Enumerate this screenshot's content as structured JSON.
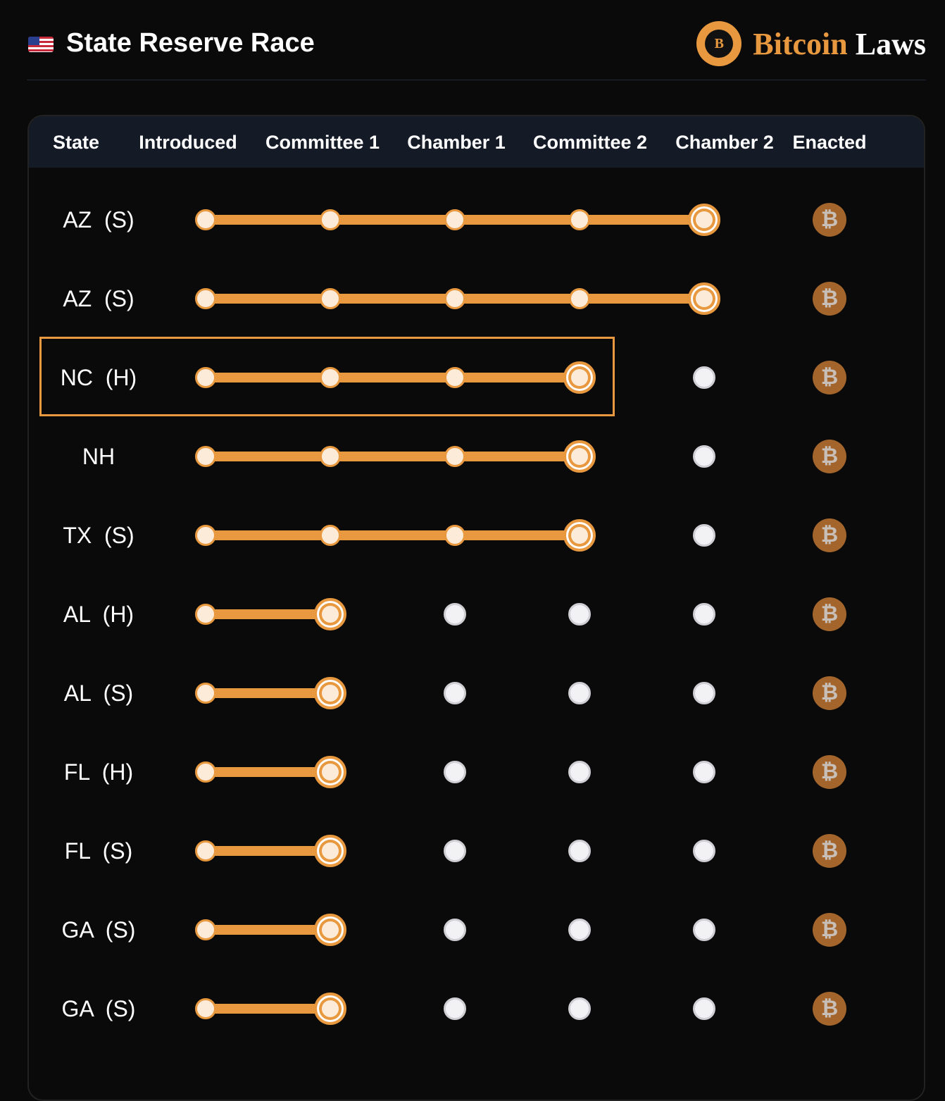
{
  "header": {
    "title": "State Reserve Race",
    "flag_icon": "us-flag-icon",
    "brand": {
      "part1": "Bitcoin",
      "part2": "Laws",
      "seal_letter": "B"
    }
  },
  "colors": {
    "accent": "#e8993f",
    "enacted": "#a4652c",
    "header_bg": "#141a26"
  },
  "columns": [
    "State",
    "Introduced",
    "Committee 1",
    "Chamber 1",
    "Committee 2",
    "Chamber 2",
    "Enacted"
  ],
  "enacted_symbol": "₿",
  "rows": [
    {
      "state": "AZ  (S)",
      "stage": 4
    },
    {
      "state": "AZ  (S)",
      "stage": 4
    },
    {
      "state": "NC  (H)",
      "stage": 3,
      "highlighted": true
    },
    {
      "state": "NH",
      "stage": 3
    },
    {
      "state": "TX  (S)",
      "stage": 3
    },
    {
      "state": "AL  (H)",
      "stage": 1
    },
    {
      "state": "AL  (S)",
      "stage": 1
    },
    {
      "state": "FL  (H)",
      "stage": 1
    },
    {
      "state": "FL  (S)",
      "stage": 1
    },
    {
      "state": "GA  (S)",
      "stage": 1
    },
    {
      "state": "GA  (S)",
      "stage": 1
    }
  ]
}
